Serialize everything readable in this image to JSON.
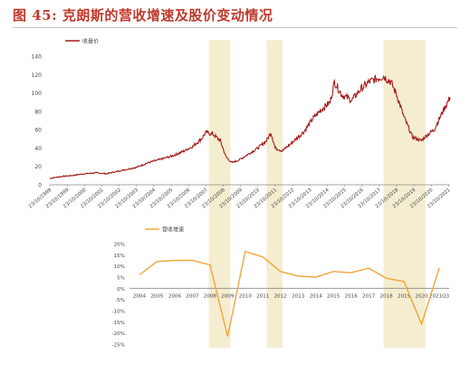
{
  "figure": {
    "title": "图 45: 克朗斯的营收增速及股价变动情况"
  },
  "colors": {
    "price_line": "#a31a1a",
    "growth_line": "#f2a43a",
    "shade": "#f4edd0",
    "axis": "#888888",
    "text": "#444444"
  },
  "chart_data": [
    {
      "type": "line",
      "title": "",
      "legend": [
        "收盘价"
      ],
      "legend_position": "top-left",
      "ylim": [
        0,
        140
      ],
      "yticks": [
        0,
        20,
        40,
        60,
        80,
        100,
        120,
        140
      ],
      "x_tick_labels": [
        "23/10/1998",
        "23/10/1999",
        "23/10/2000",
        "23/10/2001",
        "23/10/2002",
        "23/10/2003",
        "23/10/2004",
        "23/10/2005",
        "23/10/2006",
        "23/10/2007",
        "23/10/2008",
        "23/10/2009",
        "23/10/2010",
        "23/10/2011",
        "23/10/2012",
        "23/10/2013",
        "23/10/2014",
        "23/10/2015",
        "23/10/2016",
        "23/10/2017",
        "23/10/2018",
        "23/10/2019",
        "23/10/2020",
        "23/10/2021"
      ],
      "shaded_periods": [
        [
          "2007-12",
          "2009-03"
        ],
        [
          "2011-04",
          "2012-03"
        ],
        [
          "2018-01",
          "2020-06"
        ]
      ],
      "series": [
        {
          "name": "收盘价",
          "x": [
            "1998-10",
            "1999-06",
            "2000-01",
            "2000-10",
            "2001-06",
            "2002-01",
            "2002-10",
            "2003-04",
            "2003-10",
            "2004-06",
            "2005-01",
            "2005-10",
            "2006-06",
            "2007-01",
            "2007-07",
            "2007-10",
            "2008-03",
            "2008-08",
            "2008-12",
            "2009-04",
            "2009-09",
            "2010-04",
            "2010-10",
            "2011-04",
            "2011-07",
            "2011-10",
            "2012-03",
            "2012-09",
            "2013-06",
            "2013-12",
            "2014-06",
            "2014-12",
            "2015-03",
            "2015-08",
            "2016-03",
            "2016-09",
            "2017-03",
            "2017-09",
            "2018-01",
            "2018-06",
            "2018-10",
            "2019-03",
            "2019-09",
            "2020-03",
            "2020-07",
            "2020-12",
            "2021-06",
            "2021-11"
          ],
          "y": [
            7,
            9,
            10,
            12,
            13,
            12,
            15,
            17,
            19,
            24,
            27,
            31,
            36,
            42,
            50,
            57,
            55,
            48,
            30,
            24,
            27,
            34,
            40,
            48,
            57,
            40,
            37,
            45,
            58,
            72,
            82,
            90,
            112,
            98,
            92,
            104,
            112,
            116,
            118,
            112,
            98,
            74,
            52,
            48,
            54,
            60,
            80,
            95
          ]
        }
      ]
    },
    {
      "type": "line",
      "title": "",
      "legend": [
        "营收增速"
      ],
      "legend_position": "top-left",
      "ylim": [
        -25,
        20
      ],
      "yticks": [
        "20%",
        "15%",
        "10%",
        "5%",
        "0%",
        "-5%",
        "-10%",
        "-15%",
        "-20%",
        "-25%"
      ],
      "categories": [
        "2004",
        "2005",
        "2006",
        "2007",
        "2008",
        "2009",
        "2010",
        "2011",
        "2012",
        "2013",
        "2014",
        "2015",
        "2016",
        "2017",
        "2018",
        "2019",
        "2020",
        "2021Q3"
      ],
      "series": [
        {
          "name": "营收增速",
          "values": [
            6,
            12,
            12.5,
            12.5,
            10.5,
            -21.5,
            16.5,
            14,
            7.5,
            5.5,
            5,
            7.5,
            7,
            9,
            4.5,
            3,
            -16,
            9
          ]
        }
      ]
    }
  ]
}
